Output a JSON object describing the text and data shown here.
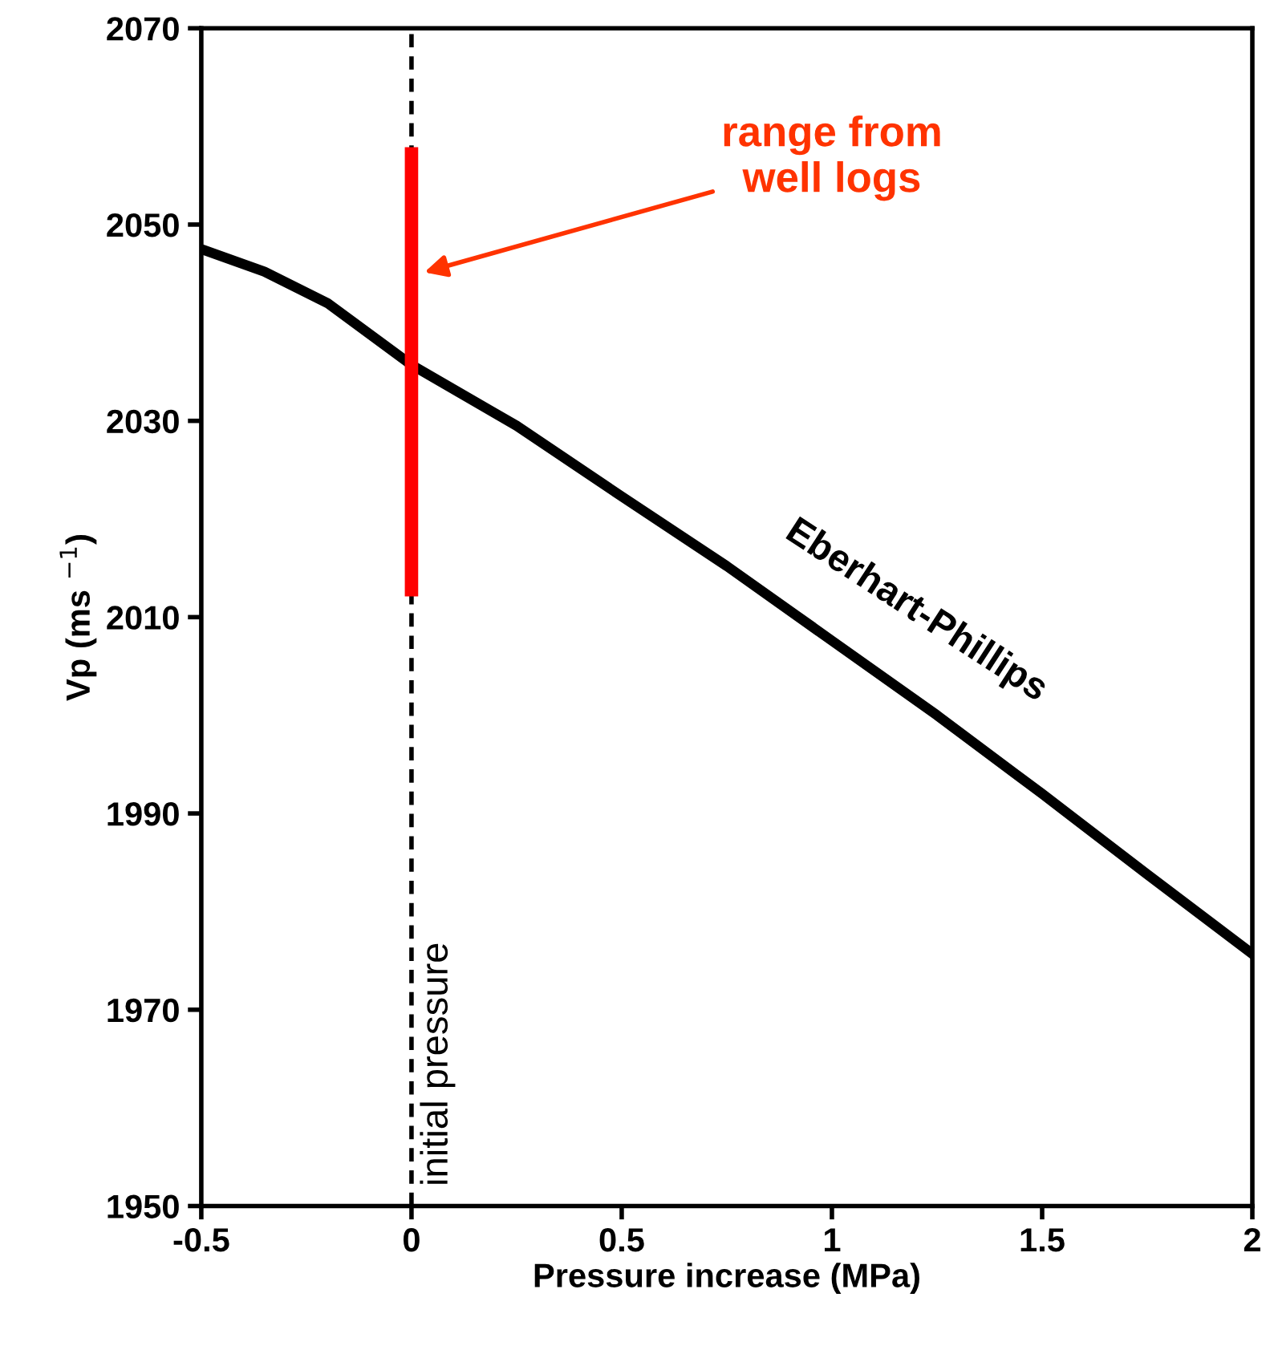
{
  "chart_data": {
    "type": "line",
    "xlabel": "Pressure increase (MPa)",
    "ylabel": "Vp (ms $^{−1}$)",
    "xlim": [
      -0.5,
      2
    ],
    "xticks": [
      -0.5,
      0,
      0.5,
      1,
      1.5,
      2
    ],
    "ylim": [
      1950,
      2070
    ],
    "yticks": [
      1950,
      1970,
      1990,
      2010,
      2030,
      2050,
      2070
    ],
    "grid": false,
    "legend": false,
    "marker": "none",
    "series": [
      {
        "name": "Eberhart-Phillips",
        "color": "#000000",
        "x": [
          -0.5,
          -0.35,
          -0.2,
          0,
          0.25,
          0.5,
          0.75,
          1,
          1.25,
          1.5,
          1.75,
          2
        ],
        "values": [
          2047.5,
          2045.2,
          2042.0,
          2035.7,
          2029.5,
          2022.3,
          2015.2,
          2007.6,
          2000.0,
          1992.0,
          1983.8,
          1975.7
        ]
      },
      {
        "color": "#ff0000",
        "x": [
          0,
          0
        ],
        "values": [
          2057.2,
          2012.8
        ]
      }
    ],
    "ref_lines": [
      {
        "axis": "x",
        "value": 0,
        "label": "initial pressure",
        "color": "#000000",
        "line_style": "dashed"
      }
    ],
    "annotations": [
      "range from well logs"
    ]
  }
}
